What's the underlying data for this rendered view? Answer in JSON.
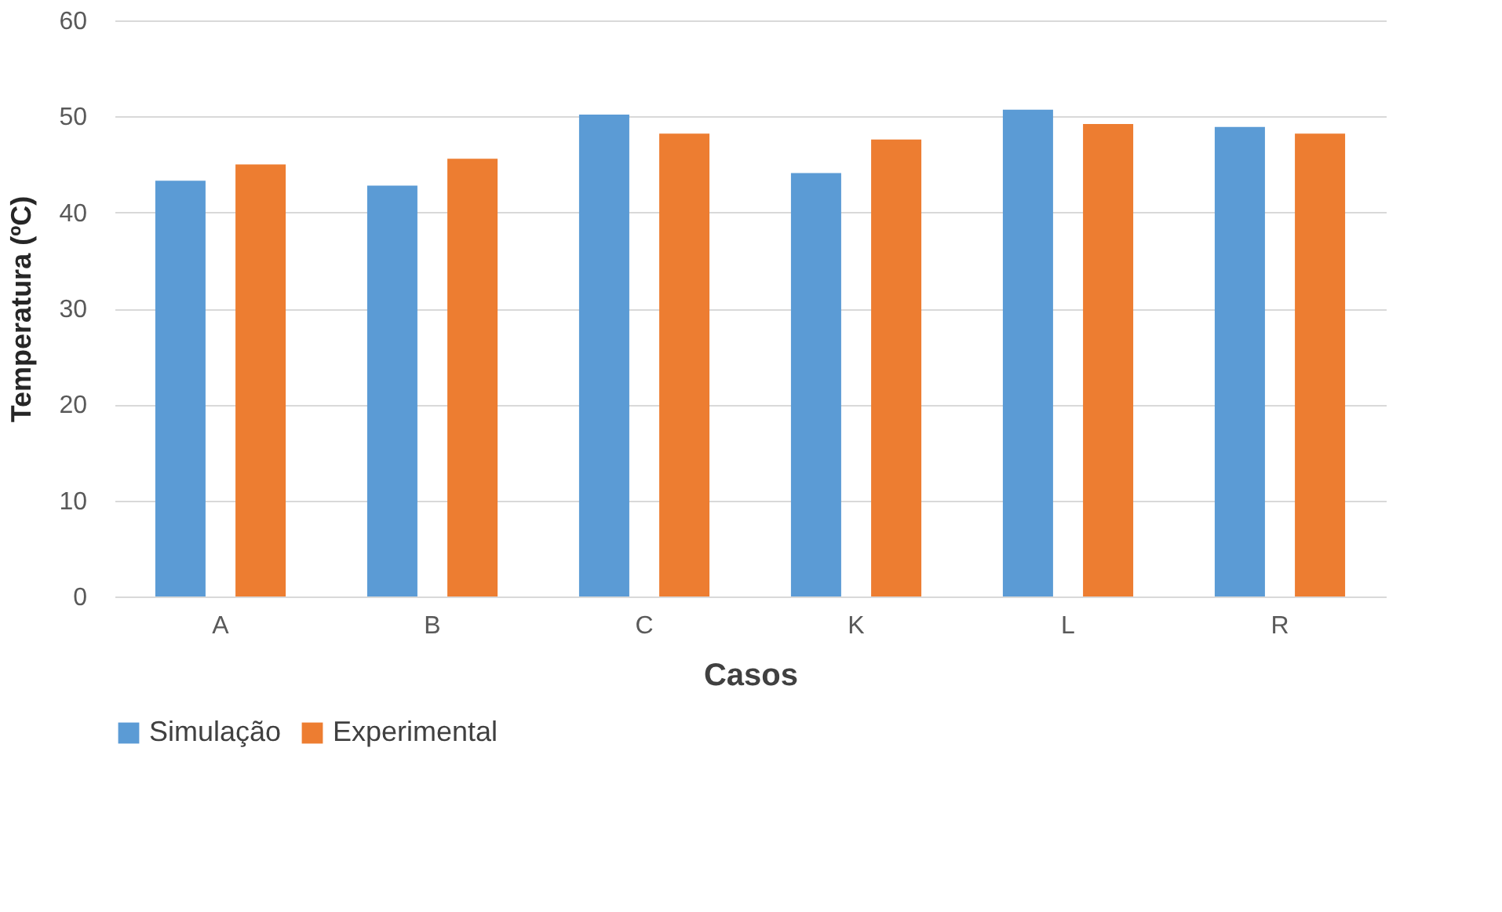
{
  "chart_data": {
    "type": "bar",
    "xlabel": "Casos",
    "ylabel": "Temperatura (ºC)",
    "categories": [
      "A",
      "B",
      "C",
      "K",
      "L",
      "R"
    ],
    "series": [
      {
        "name": "Simulação",
        "color": "#5b9bd5",
        "values": [
          43.3,
          42.8,
          50.2,
          44.1,
          50.7,
          48.9
        ]
      },
      {
        "name": "Experimental",
        "color": "#ed7d31",
        "values": [
          45.0,
          45.6,
          48.2,
          47.6,
          49.2,
          48.2
        ]
      }
    ],
    "ylim": [
      0,
      60
    ],
    "yticks": [
      0,
      10,
      20,
      30,
      40,
      50,
      60
    ],
    "grid": "y",
    "legend": "bottom"
  }
}
